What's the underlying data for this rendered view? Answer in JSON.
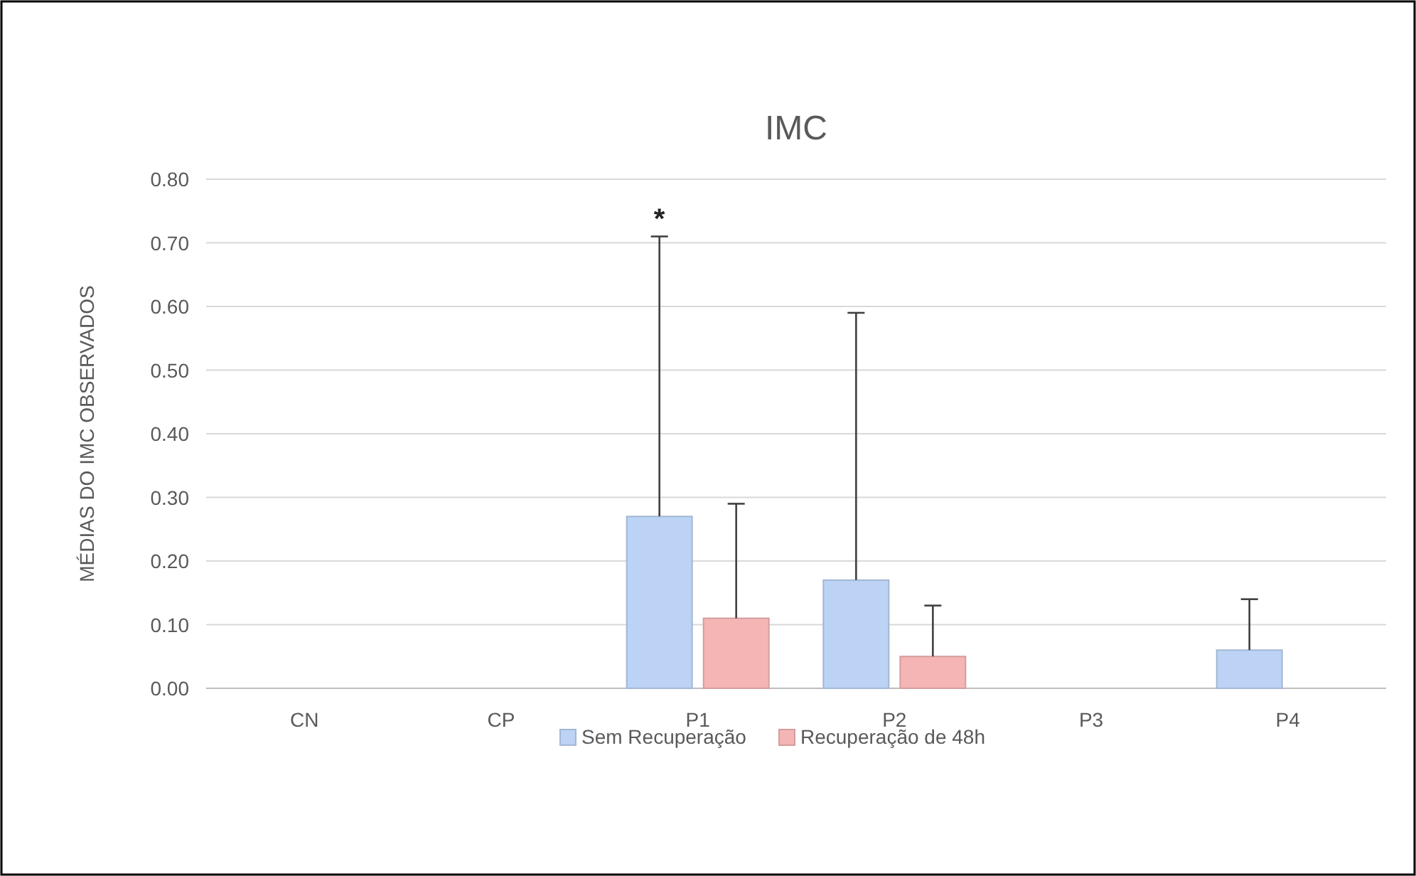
{
  "chart_data": {
    "type": "bar",
    "title": "IMC",
    "ylabel": "MÉDIAS DO IMC OBSERVADOS",
    "categories": [
      "CN",
      "CP",
      "P1",
      "P2",
      "P3",
      "P4"
    ],
    "series": [
      {
        "name": "Sem Recuperação",
        "color": "#bcd3f5",
        "values": [
          0,
          0,
          0.27,
          0.17,
          0,
          0.06
        ],
        "errors": [
          null,
          null,
          [
            0.27,
            0.71
          ],
          [
            0.17,
            0.59
          ],
          null,
          [
            0.06,
            0.14
          ]
        ]
      },
      {
        "name": "Recuperação de 48h",
        "color": "#f5b5b5",
        "values": [
          0,
          0,
          0.11,
          0.05,
          0,
          0
        ],
        "errors": [
          null,
          null,
          [
            0.11,
            0.29
          ],
          [
            0.05,
            0.13
          ],
          null,
          null
        ]
      }
    ],
    "ylim": [
      0,
      0.8
    ],
    "yticks": [
      {
        "value": 0,
        "label": "0.00"
      },
      {
        "value": 0.1,
        "label": "0.10"
      },
      {
        "value": 0.2,
        "label": "0.20"
      },
      {
        "value": 0.3,
        "label": "0.30"
      },
      {
        "value": 0.4,
        "label": "0.40"
      },
      {
        "value": 0.5,
        "label": "0.50"
      },
      {
        "value": 0.6,
        "label": "0.60"
      },
      {
        "value": 0.7,
        "label": "0.70"
      },
      {
        "value": 0.8,
        "label": "0.80"
      }
    ],
    "grid": "y",
    "legend": "bottom",
    "annotations": [
      "*"
    ]
  }
}
